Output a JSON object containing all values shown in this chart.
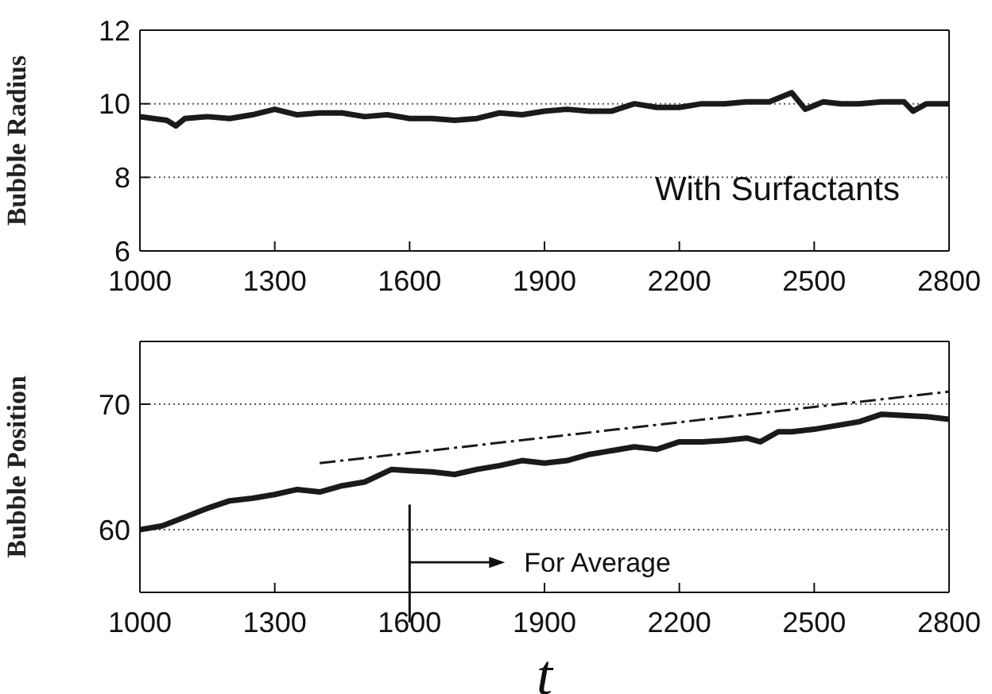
{
  "chart_data": [
    {
      "type": "line",
      "ylabel": "Bubble Radius",
      "xlim": [
        1000,
        2800
      ],
      "ylim": [
        6,
        12
      ],
      "xticks": [
        1000,
        1300,
        1600,
        1900,
        2200,
        2500,
        2800
      ],
      "yticks": [
        6,
        8,
        10,
        12
      ],
      "grid": "y",
      "annotations": [
        "With Surfactants"
      ],
      "x": [
        1000,
        1030,
        1060,
        1080,
        1100,
        1150,
        1200,
        1250,
        1300,
        1350,
        1400,
        1450,
        1500,
        1550,
        1600,
        1650,
        1700,
        1750,
        1800,
        1850,
        1900,
        1950,
        2000,
        2050,
        2100,
        2150,
        2200,
        2250,
        2300,
        2350,
        2400,
        2450,
        2480,
        2520,
        2560,
        2600,
        2650,
        2700,
        2720,
        2750,
        2800
      ],
      "series": [
        {
          "color": "#1a1a1a",
          "values": [
            9.65,
            9.6,
            9.55,
            9.4,
            9.6,
            9.65,
            9.6,
            9.7,
            9.85,
            9.7,
            9.75,
            9.75,
            9.65,
            9.7,
            9.6,
            9.6,
            9.55,
            9.6,
            9.75,
            9.7,
            9.8,
            9.85,
            9.8,
            9.8,
            10.0,
            9.9,
            9.9,
            10.0,
            10.0,
            10.05,
            10.05,
            10.3,
            9.85,
            10.05,
            10.0,
            10.0,
            10.05,
            10.05,
            9.8,
            10.0,
            10.0
          ]
        }
      ]
    },
    {
      "type": "line",
      "ylabel": "Bubble Position",
      "xlabel": "t",
      "xlim": [
        1000,
        2800
      ],
      "ylim": [
        55,
        75
      ],
      "xticks": [
        1000,
        1300,
        1600,
        1900,
        2200,
        2500,
        2800
      ],
      "yticks": [
        60,
        70
      ],
      "grid": "y",
      "ref_lines": [
        {
          "axis": "x",
          "value": 1600,
          "label": "For Average"
        }
      ],
      "x": [
        1000,
        1050,
        1100,
        1150,
        1200,
        1250,
        1300,
        1350,
        1400,
        1450,
        1500,
        1560,
        1600,
        1650,
        1700,
        1750,
        1800,
        1850,
        1900,
        1950,
        2000,
        2050,
        2100,
        2150,
        2200,
        2250,
        2300,
        2350,
        2380,
        2420,
        2450,
        2500,
        2550,
        2600,
        2650,
        2700,
        2750,
        2800
      ],
      "series": [
        {
          "color": "#1a1a1a",
          "values": [
            60.0,
            60.3,
            61.0,
            61.7,
            62.3,
            62.5,
            62.8,
            63.2,
            63.0,
            63.5,
            63.8,
            64.8,
            64.7,
            64.6,
            64.4,
            64.8,
            65.1,
            65.5,
            65.3,
            65.5,
            66.0,
            66.3,
            66.6,
            66.4,
            67.0,
            67.0,
            67.1,
            67.3,
            67.0,
            67.8,
            67.8,
            68.0,
            68.3,
            68.6,
            69.2,
            69.1,
            69.0,
            68.8
          ]
        },
        {
          "type": "line",
          "line_style": "dashed",
          "color": "#1a1a1a",
          "x": [
            1400,
            2800
          ],
          "values": [
            65.3,
            71.0
          ]
        }
      ]
    }
  ]
}
